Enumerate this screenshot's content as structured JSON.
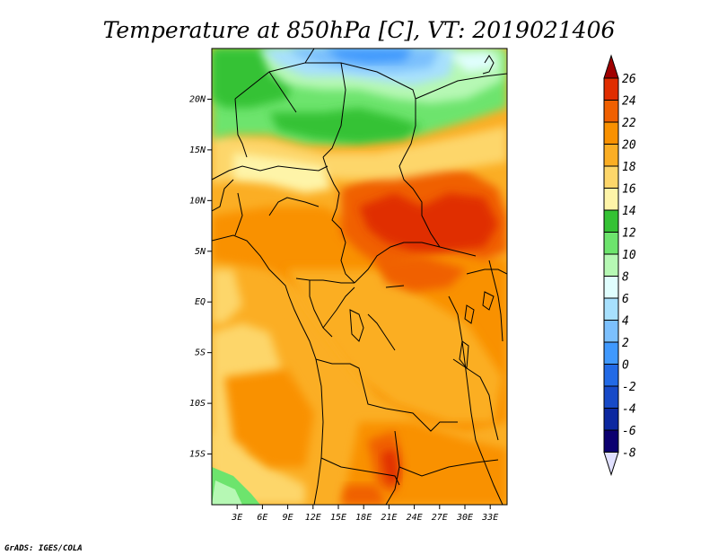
{
  "title": "Temperature at 850hPa [C], VT: 2019021406",
  "credit": "GrADS: IGES/COLA",
  "map": {
    "lat_labels": [
      "20N",
      "15N",
      "10N",
      "5N",
      "EQ",
      "5S",
      "10S",
      "15S"
    ],
    "lat_values": [
      20,
      15,
      10,
      5,
      0,
      -5,
      -10,
      -15
    ],
    "lon_labels": [
      "3E",
      "6E",
      "9E",
      "12E",
      "15E",
      "18E",
      "21E",
      "24E",
      "27E",
      "30E",
      "33E"
    ],
    "lon_values": [
      3,
      6,
      9,
      12,
      15,
      18,
      21,
      24,
      27,
      30,
      33
    ],
    "lon_range": [
      0,
      35
    ],
    "lat_range": [
      -20,
      25
    ]
  },
  "colorbar": {
    "levels": [
      "26",
      "24",
      "22",
      "20",
      "18",
      "16",
      "14",
      "12",
      "10",
      "8",
      "6",
      "4",
      "2",
      "0",
      "-2",
      "-4",
      "-6",
      "-8"
    ],
    "colors": [
      "#a00000",
      "#e02d00",
      "#f06000",
      "#f99100",
      "#fbae24",
      "#fdd66a",
      "#fef4a8",
      "#34c234",
      "#6de46d",
      "#b6f8b4",
      "#e0fefe",
      "#a7e0fd",
      "#7cc0fd",
      "#4099fd",
      "#226ae6",
      "#174ac8",
      "#0c28a0",
      "#0c0070",
      "#e0e0ff"
    ]
  }
}
